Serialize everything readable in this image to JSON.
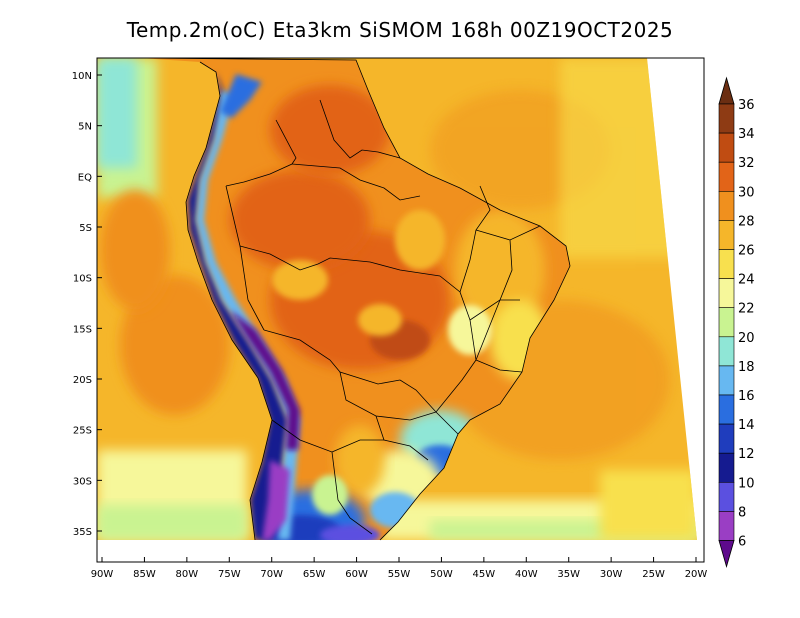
{
  "title": "Temp.2m(oC) Eta3km SiSMOM 168h 00Z19OCT2025",
  "map": {
    "lat_labels": [
      "10N",
      "5N",
      "EQ",
      "5S",
      "10S",
      "15S",
      "20S",
      "25S",
      "30S",
      "35S"
    ],
    "lat_values": [
      10,
      5,
      0,
      -5,
      -10,
      -15,
      -20,
      -25,
      -30,
      -35
    ],
    "lon_labels": [
      "90W",
      "85W",
      "80W",
      "75W",
      "70W",
      "65W",
      "60W",
      "55W",
      "50W",
      "45W",
      "40W",
      "35W",
      "30W",
      "25W",
      "20W"
    ],
    "lon_values": [
      -90,
      -85,
      -80,
      -75,
      -70,
      -65,
      -60,
      -55,
      -50,
      -45,
      -40,
      -35,
      -30,
      -25,
      -20
    ],
    "extent": {
      "lon": [
        -90,
        -20
      ],
      "lat": [
        -38,
        12
      ]
    }
  },
  "colorbar": {
    "labels": [
      "36",
      "34",
      "32",
      "30",
      "28",
      "26",
      "24",
      "22",
      "20",
      "18",
      "16",
      "14",
      "12",
      "10",
      "8",
      "6"
    ],
    "colors": [
      "#6b2e12",
      "#8e3b14",
      "#c04c12",
      "#e26418",
      "#f0901e",
      "#f5b62a",
      "#f8e04e",
      "#f6f79a",
      "#c9f391",
      "#8fe6d6",
      "#67b8f1",
      "#2a6ee0",
      "#1f3dbd",
      "#151b90",
      "#5b50e0",
      "#9a3ec4",
      "#5e0a8c"
    ],
    "unit": "oC"
  }
}
